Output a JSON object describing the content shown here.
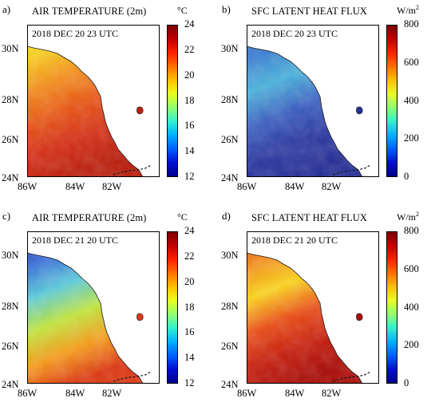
{
  "panels": [
    {
      "label": "a)",
      "title": "AIR TEMPERATURE (2m)",
      "timestamp": "2018 DEC 20  23 UTC",
      "unit": "°C",
      "unit_sup": "",
      "colorbar_ticks": [
        "24",
        "22",
        "20",
        "18",
        "16",
        "14",
        "12"
      ],
      "colormap": "jet",
      "sea_gradient": [
        "#e8ef3a",
        "#f5c81e",
        "#f08a1c",
        "#e45519",
        "#d02c16",
        "#b8200f"
      ]
    },
    {
      "label": "b)",
      "title": "SFC LATENT HEAT FLUX",
      "timestamp": "2018 DEC 20  23 UTC",
      "unit": "W/m",
      "unit_sup": "2",
      "colorbar_ticks": [
        "800",
        "600",
        "400",
        "200",
        "0"
      ],
      "colormap": "jet",
      "sea_gradient": [
        "#3b52b4",
        "#3f7fd0",
        "#4ab0d8",
        "#3e63c0",
        "#2e3aa0",
        "#273095"
      ]
    },
    {
      "label": "c)",
      "title": "AIR TEMPERATURE (2m)",
      "timestamp": "2018 DEC 21  20 UTC",
      "unit": "°C",
      "unit_sup": "",
      "colorbar_ticks": [
        "24",
        "22",
        "20",
        "18",
        "16",
        "14",
        "12"
      ],
      "colormap": "jet",
      "sea_gradient": [
        "#2a37a8",
        "#3d6fd6",
        "#5cc8d8",
        "#bfe23c",
        "#f39a1c",
        "#d93a16"
      ]
    },
    {
      "label": "d)",
      "title": "SFC LATENT HEAT FLUX",
      "timestamp": "2018 DEC 21  20 UTC",
      "unit": "W/m",
      "unit_sup": "2",
      "colorbar_ticks": [
        "800",
        "600",
        "400",
        "200",
        "0"
      ],
      "colormap": "jet",
      "sea_gradient": [
        "#d43a16",
        "#f08a1c",
        "#f7d21e",
        "#e8501a",
        "#c4200f",
        "#a80f0b"
      ]
    }
  ],
  "lat_ticks": [
    "30N",
    "28N",
    "26N",
    "24N"
  ],
  "lon_ticks": [
    "86W",
    "84W",
    "82W"
  ],
  "map_colors": {
    "land": "#ffffff",
    "coast": "#1a1a1a"
  }
}
